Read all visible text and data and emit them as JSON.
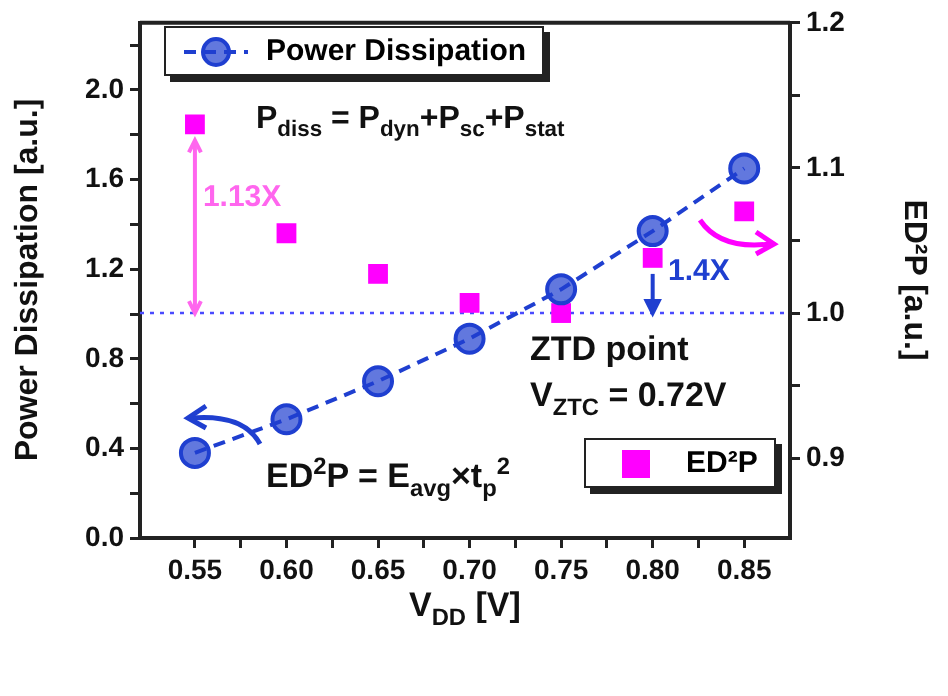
{
  "chart_data": {
    "type": "line",
    "xlabel": "V$_{DD}$ [V]",
    "ylabel": "Power Dissipation [a.u.]",
    "y2label": "ED²P [a.u.]",
    "x": [
      0.55,
      0.6,
      0.65,
      0.7,
      0.75,
      0.8,
      0.85
    ],
    "series": [
      {
        "name": "Power Dissipation",
        "type": "line",
        "color": "#1f3fd0",
        "marker": "circle",
        "line_style": "dashed",
        "axis": "y",
        "values": [
          0.38,
          0.53,
          0.7,
          0.89,
          1.11,
          1.37,
          1.65
        ]
      },
      {
        "name": "ED²P",
        "type": "scatter",
        "color": "#ff00ff",
        "marker": "square",
        "axis": "y2",
        "values": [
          1.13,
          1.055,
          1.027,
          1.007,
          1.0,
          1.038,
          1.07
        ]
      }
    ],
    "xlim": [
      0.52,
      0.875
    ],
    "xticks": [
      0.55,
      {
        "value": 0.575,
        "label": null
      },
      {
        "value": 0.6,
        "label": "0.60"
      },
      {
        "value": 0.625,
        "label": null
      },
      0.65,
      {
        "value": 0.675,
        "label": null
      },
      {
        "value": 0.7,
        "label": "0.70"
      },
      {
        "value": 0.725,
        "label": null
      },
      0.75,
      {
        "value": 0.775,
        "label": null
      },
      {
        "value": 0.8,
        "label": "0.80"
      },
      {
        "value": 0.825,
        "label": null
      },
      0.85
    ],
    "ylim": [
      0,
      2.3
    ],
    "yticks": [
      {
        "value": 0,
        "label": "0.0"
      },
      {
        "value": 0.2,
        "label": null
      },
      0.4,
      {
        "value": 0.6,
        "label": null
      },
      0.8,
      {
        "value": 1.0,
        "label": null
      },
      1.2,
      {
        "value": 1.4,
        "label": null
      },
      1.6,
      {
        "value": 1.8,
        "label": null
      },
      {
        "value": 2.0,
        "label": "2.0"
      },
      {
        "value": 2.2,
        "label": null
      }
    ],
    "y2lim": [
      0.845,
      1.2
    ],
    "y2ticks": [
      0.9,
      {
        "value": 0.95,
        "label": null
      },
      {
        "value": 1.0,
        "label": "1.0"
      },
      {
        "value": 1.05,
        "label": null
      },
      1.1,
      {
        "value": 1.15,
        "label": null
      },
      1.2
    ],
    "ref_lines": [
      {
        "axis": "y2",
        "value": 1.0,
        "color": "#4a4aff",
        "line_style": "dotted"
      }
    ],
    "annotations": [
      "P$_{diss}$ = P$_{dyn}$+P$_{sc}$+P$_{stat}$",
      {
        "text": "1.13X",
        "x": 0.55,
        "y": 1.0
      },
      "1.4X",
      "ZTD point",
      "V$_{ZTC}$ = 0.72V",
      "ED$^{2}$P = E$_{avg}$×t$_{p}$$^{2}$"
    ],
    "legend": "top left",
    "grid": false
  }
}
